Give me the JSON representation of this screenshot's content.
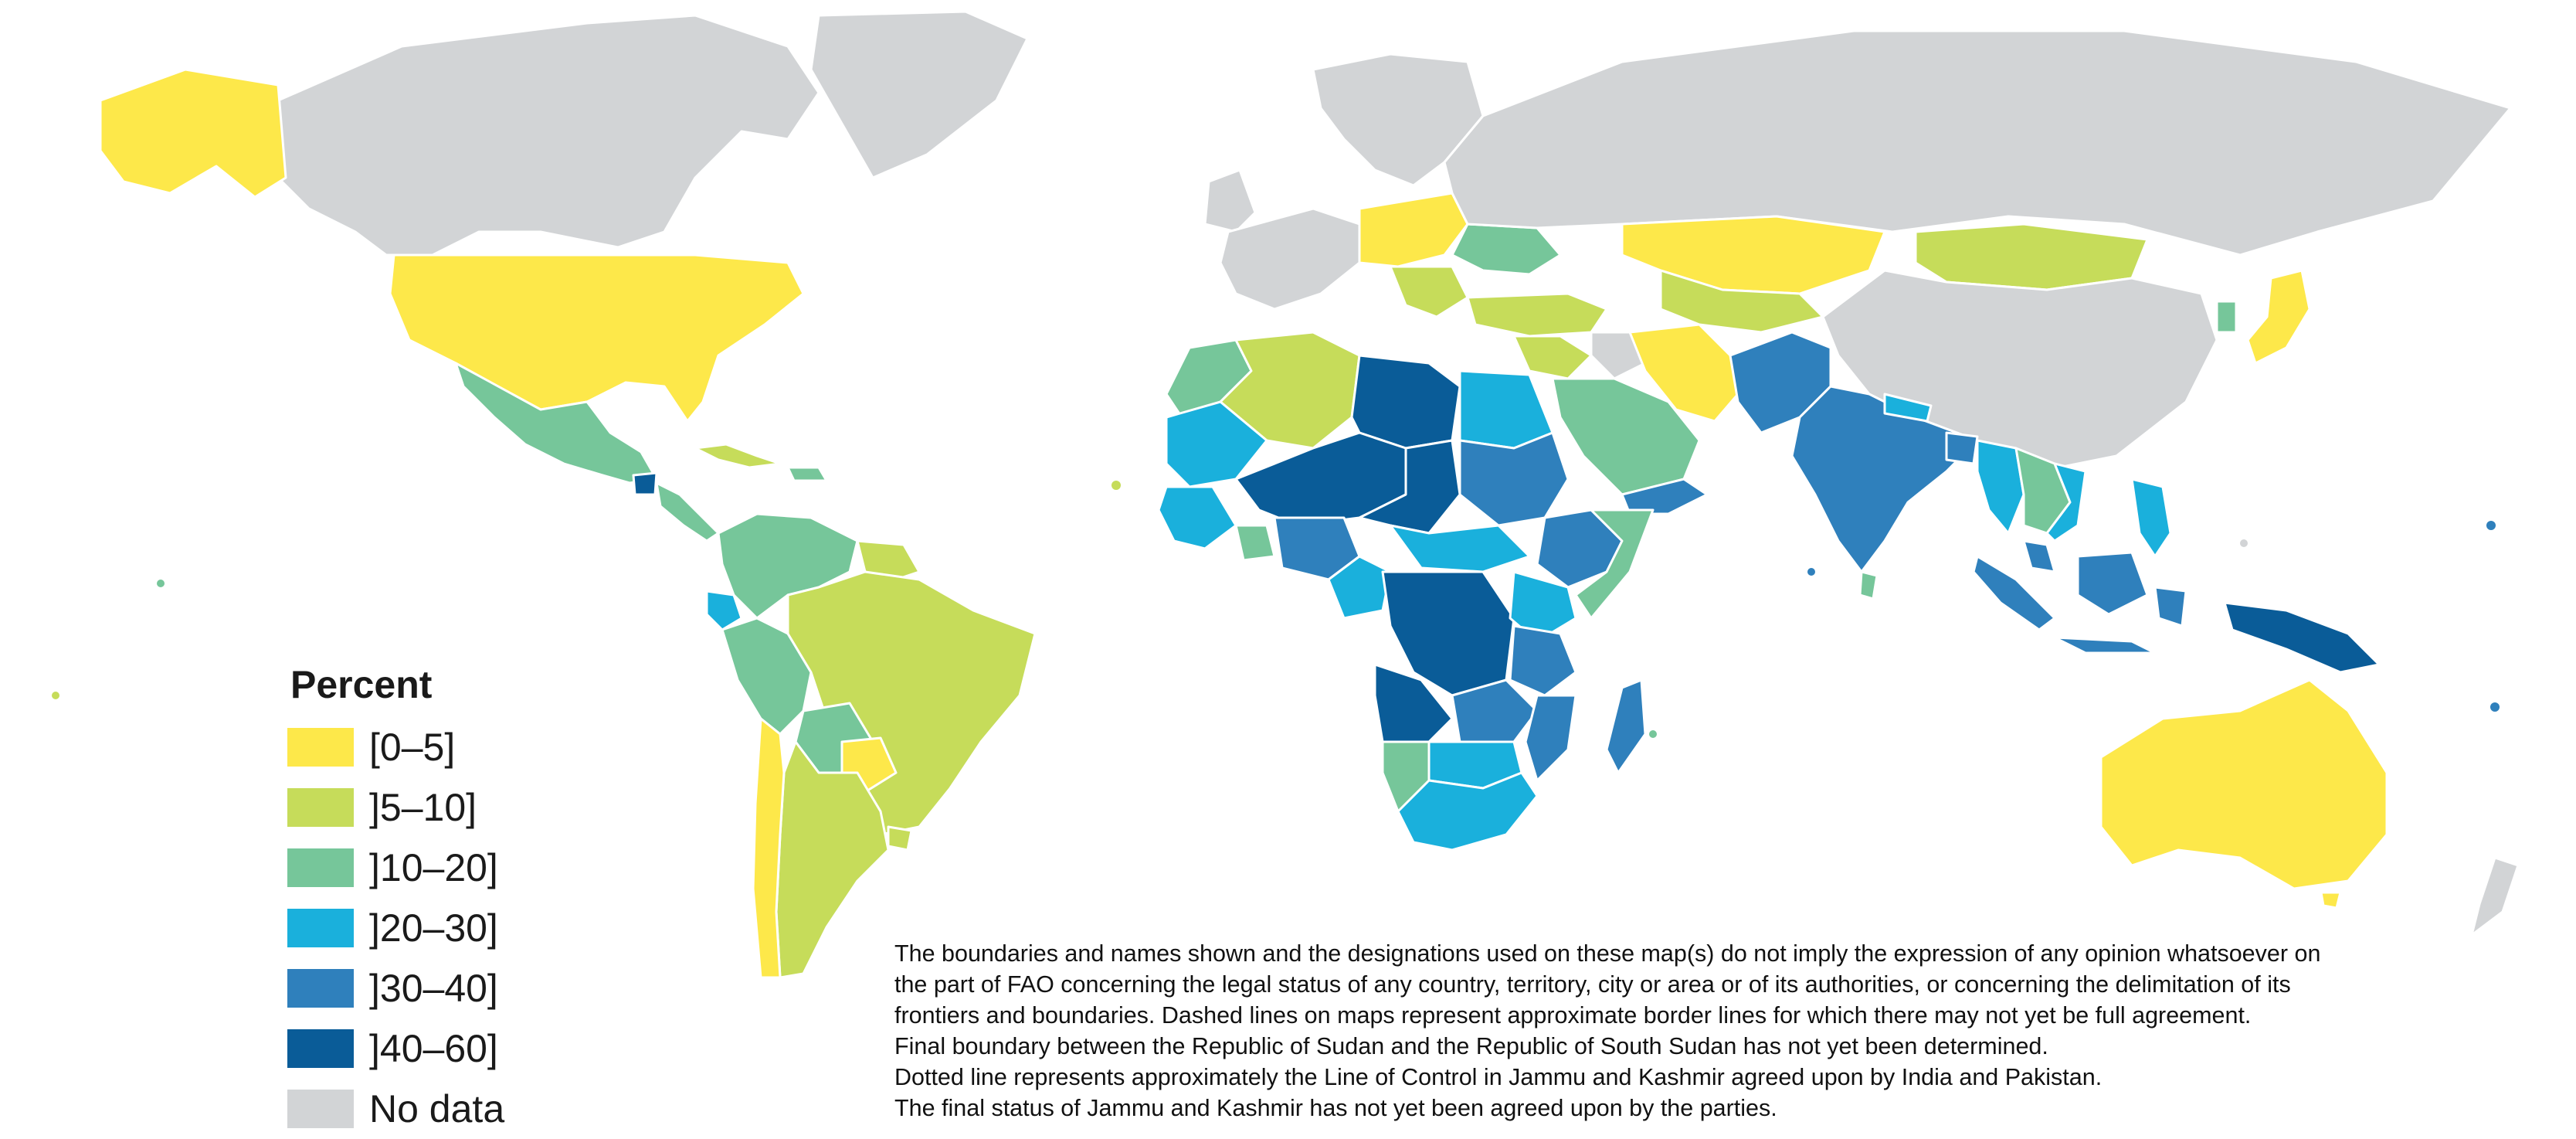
{
  "legend": {
    "title": "Percent",
    "items": [
      {
        "label": "[0–5]",
        "color": "#fde84a",
        "key": "c1"
      },
      {
        "label": "]5–10]",
        "color": "#c6dc5a",
        "key": "c2"
      },
      {
        "label": "]10–20]",
        "color": "#76c69a",
        "key": "c3"
      },
      {
        "label": "]20–30]",
        "color": "#1ab0dc",
        "key": "c4"
      },
      {
        "label": "]30–40]",
        "color": "#2f80bc",
        "key": "c5"
      },
      {
        "label": "]40–60]",
        "color": "#0a5c98",
        "key": "c6"
      },
      {
        "label": "No data",
        "color": "#d2d4d6",
        "key": "nd"
      }
    ]
  },
  "disclaimer": {
    "line1": "The boundaries and names shown and the designations used on these map(s) do not imply the expression of any opinion whatsoever on",
    "line2": "the part of FAO concerning the legal status of any country, territory, city or area or of its authorities, or concerning the delimitation of its",
    "line3": "frontiers and boundaries. Dashed lines on maps represent approximate border lines for which there may not yet be full agreement.",
    "line4": "Final boundary between the Republic of Sudan and the Republic of South Sudan has not yet been determined.",
    "line5": "Dotted line represents approximately the Line of Control in Jammu and Kashmir agreed upon by India and Pakistan.",
    "line6": "The final status of Jammu and Kashmir has not yet been agreed upon by the parties."
  }
}
